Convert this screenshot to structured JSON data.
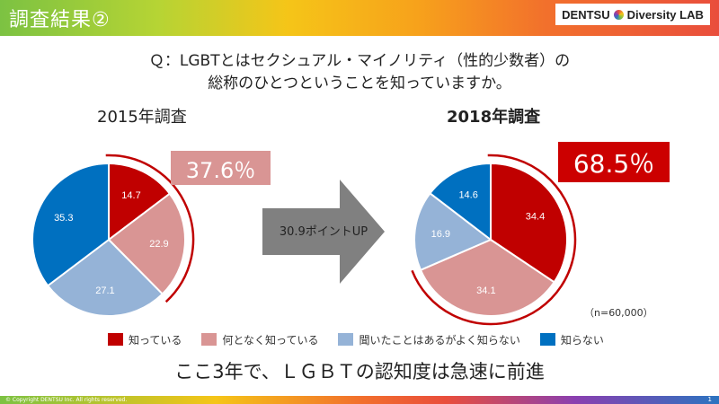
{
  "header": {
    "title": "調査結果②",
    "logo_text_left": "DENTSU",
    "logo_text_right": "Diversity LAB"
  },
  "question": {
    "line1": "Ｑ：LGBTとはセクシュアル・マイノリティ（性的少数者）の",
    "line2": "総称のひとつということを知っていますか。"
  },
  "arrow_label": "30.9ポイントUP",
  "sample_note": "（n=60,000）",
  "conclusion": "ここ3年で、ＬＧＢＴの認知度は急速に前進",
  "footer": {
    "copyright": "© Copyright DENTSU Inc.   All rights reserved.",
    "page": "1"
  },
  "colors": {
    "know": "#c00000",
    "vaguely": "#d99594",
    "heard": "#95b3d7",
    "dont_know": "#0070c0",
    "highlight_arc": "#c00000"
  },
  "chart_data": [
    {
      "type": "pie",
      "title": "2015年調査",
      "highlight_total": "37.6％",
      "categories": [
        "知っている",
        "何となく知っている",
        "聞いたことはあるがよく知らない",
        "知らない"
      ],
      "values": [
        14.7,
        22.9,
        27.1,
        35.3
      ],
      "labels": [
        "14.7",
        "22.9",
        "27.1",
        "35.3"
      ]
    },
    {
      "type": "pie",
      "title": "2018年調査",
      "highlight_total": "68.5％",
      "categories": [
        "知っている",
        "何となく知っている",
        "聞いたことはあるがよく知らない",
        "知らない"
      ],
      "values": [
        34.4,
        34.1,
        16.9,
        14.6
      ],
      "labels": [
        "34.4",
        "34.1",
        "16.9",
        "14.6"
      ]
    }
  ],
  "legend": [
    {
      "key": "know",
      "label": "知っている"
    },
    {
      "key": "vaguely",
      "label": "何となく知っている"
    },
    {
      "key": "heard",
      "label": "聞いたことはあるがよく知らない"
    },
    {
      "key": "dont_know",
      "label": "知らない"
    }
  ]
}
